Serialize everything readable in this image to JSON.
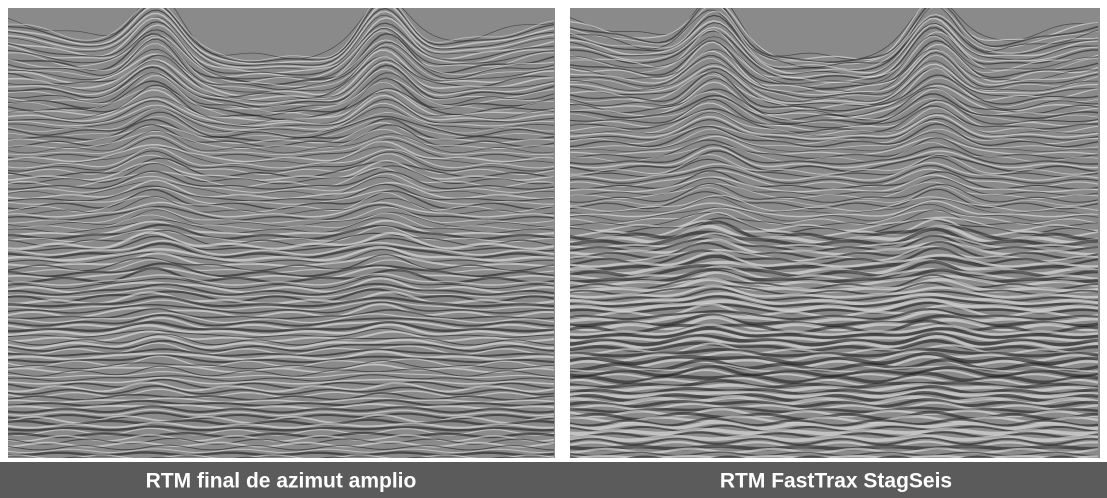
{
  "panels": [
    {
      "caption": "RTM final de azimut amplio"
    },
    {
      "caption": "RTM FastTrax StagSeis"
    }
  ]
}
